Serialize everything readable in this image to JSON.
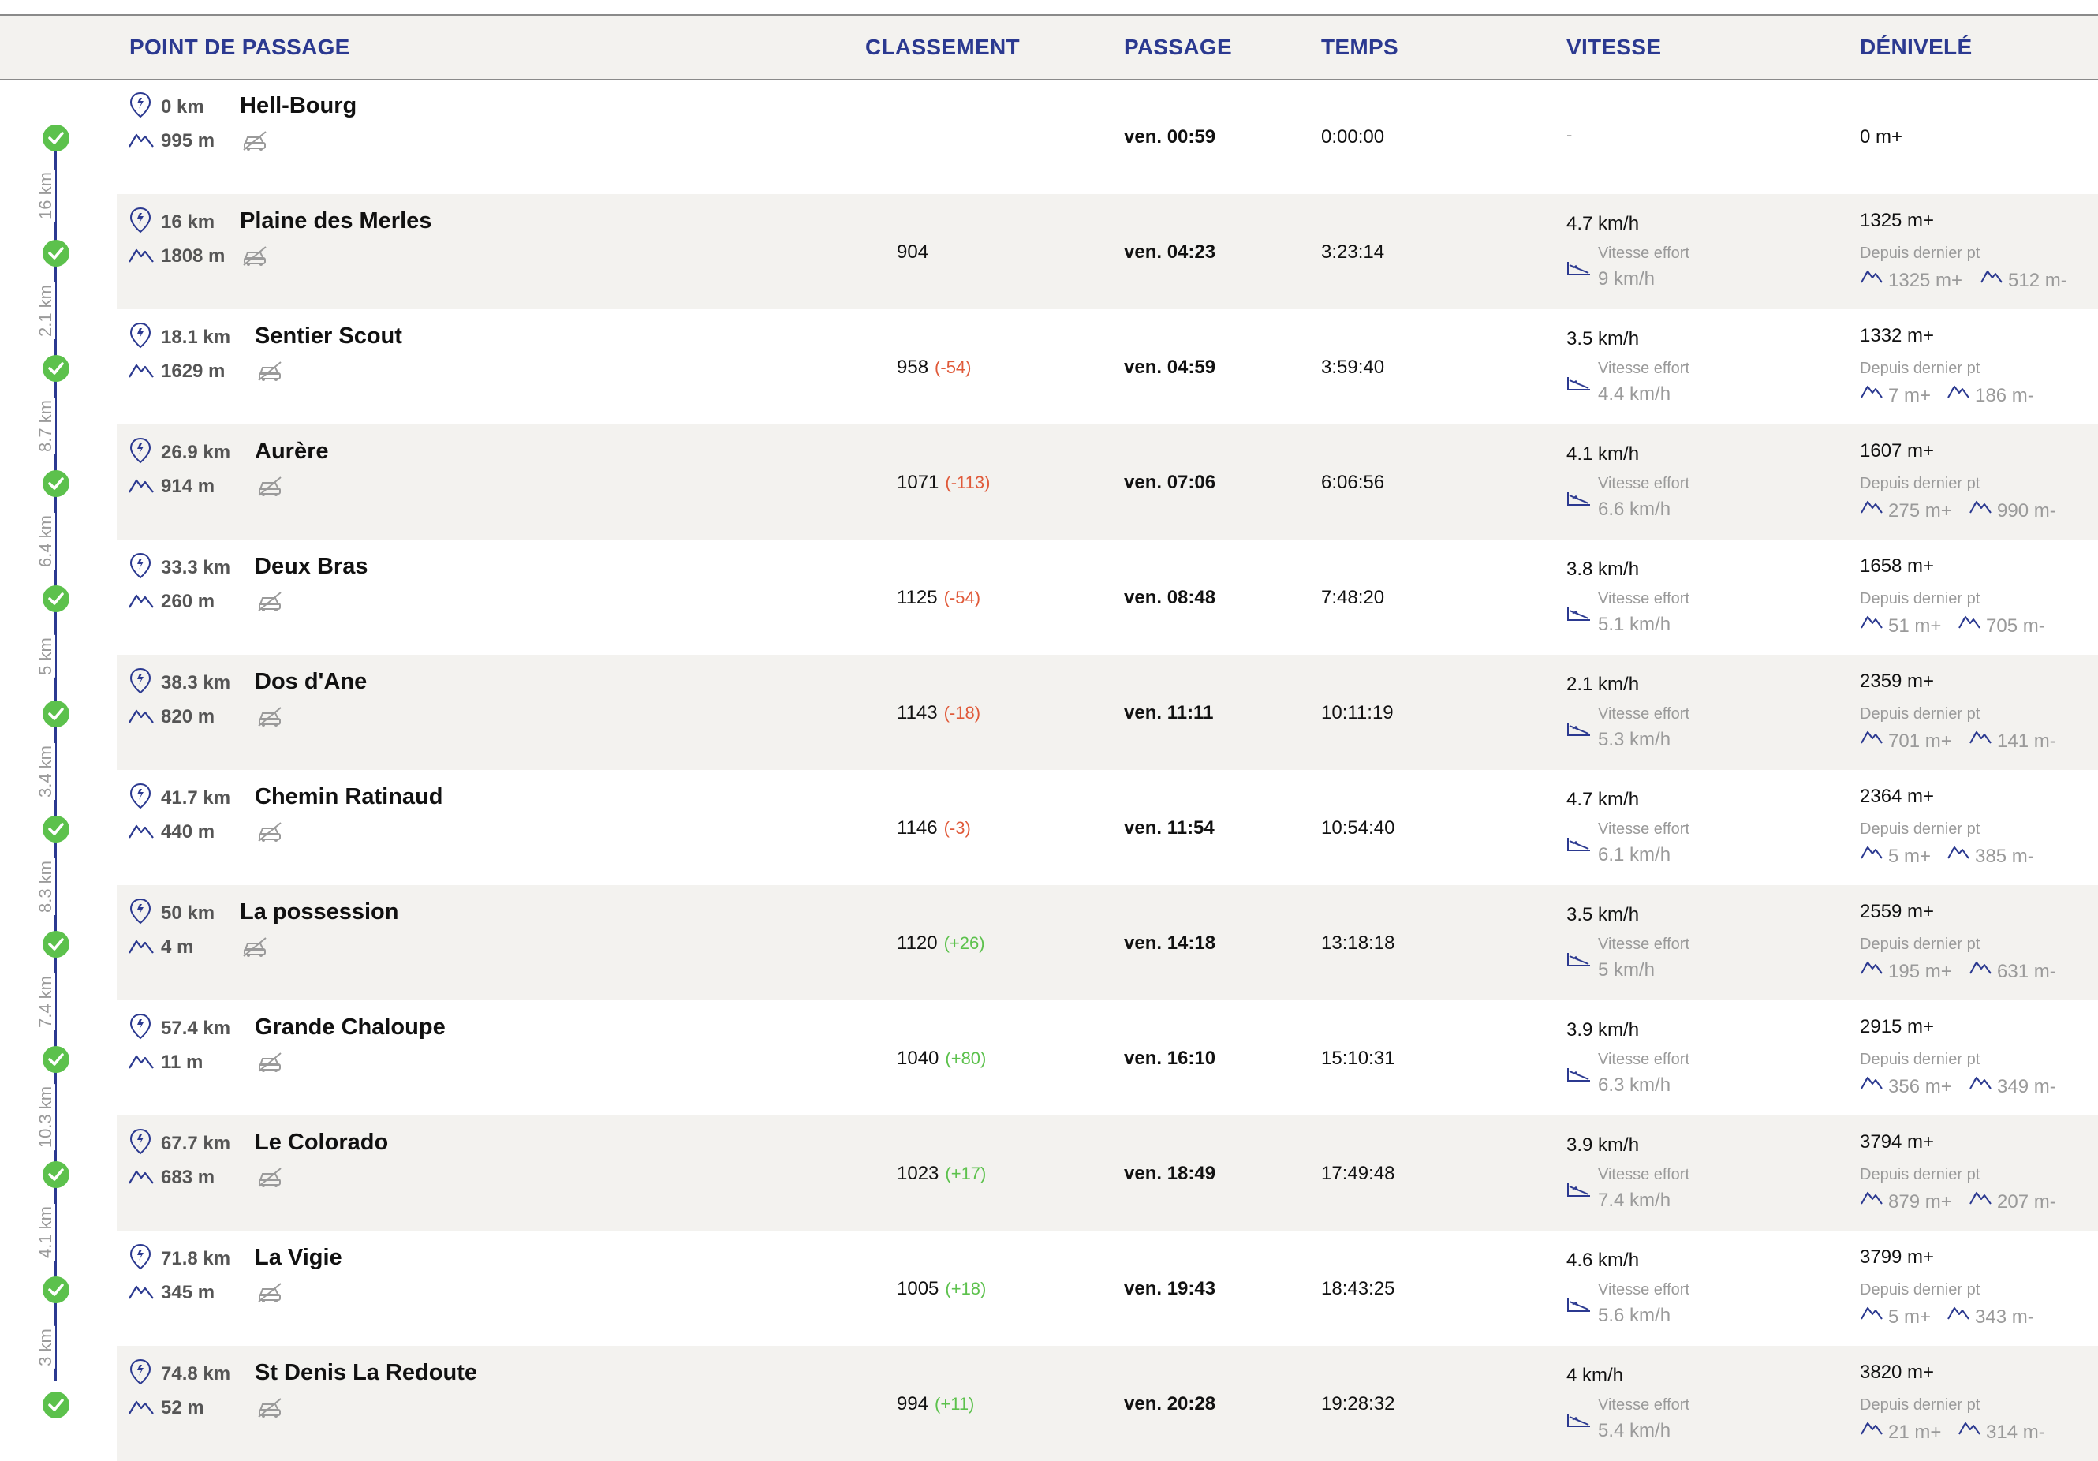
{
  "colors": {
    "accent": "#2b3990",
    "check": "#5cc14c",
    "negative": "#e05a3a",
    "positive": "#5cc14c",
    "muted": "#9a9a9a",
    "shade": "#f3f2ef"
  },
  "icons": {
    "distance": "runner-pin-icon",
    "altitude": "mountain-icon",
    "car": "no-car-icon",
    "effort": "effort-slope-icon",
    "elevation": "elevation-icon"
  },
  "header": {
    "point": "POINT DE PASSAGE",
    "classement": "CLASSEMENT",
    "passage": "PASSAGE",
    "temps": "TEMPS",
    "vitesse": "VITESSE",
    "denivele": "DÉNIVELÉ"
  },
  "effort_label": "Vitesse effort",
  "elev_label": "Depuis dernier pt",
  "first_row_speed": "-",
  "segments": [
    "16 km",
    "2.1 km",
    "8.7 km",
    "6.4 km",
    "5 km",
    "3.4 km",
    "8.3 km",
    "7.4 km",
    "10.3 km",
    "4.1 km",
    "3 km"
  ],
  "rows": [
    {
      "km": "0 km",
      "alt": "995 m",
      "name": "Hell-Bourg",
      "rank": "",
      "delta": "",
      "delta_sign": "",
      "passage": "ven. 00:59",
      "temps": "0:00:00",
      "speed": "",
      "effort": "",
      "elev": "0 m+",
      "up": "",
      "down": ""
    },
    {
      "km": "16 km",
      "alt": "1808 m",
      "name": "Plaine des Merles",
      "rank": "904",
      "delta": "",
      "delta_sign": "",
      "passage": "ven. 04:23",
      "temps": "3:23:14",
      "speed": "4.7 km/h",
      "effort": "9 km/h",
      "elev": "1325 m+",
      "up": "1325 m+",
      "down": "512 m-"
    },
    {
      "km": "18.1 km",
      "alt": "1629 m",
      "name": "Sentier Scout",
      "rank": "958",
      "delta": "(-54)",
      "delta_sign": "neg",
      "passage": "ven. 04:59",
      "temps": "3:59:40",
      "speed": "3.5 km/h",
      "effort": "4.4 km/h",
      "elev": "1332 m+",
      "up": "7 m+",
      "down": "186 m-"
    },
    {
      "km": "26.9 km",
      "alt": "914 m",
      "name": "Aurère",
      "rank": "1071",
      "delta": "(-113)",
      "delta_sign": "neg",
      "passage": "ven. 07:06",
      "temps": "6:06:56",
      "speed": "4.1 km/h",
      "effort": "6.6 km/h",
      "elev": "1607 m+",
      "up": "275 m+",
      "down": "990 m-"
    },
    {
      "km": "33.3 km",
      "alt": "260 m",
      "name": "Deux Bras",
      "rank": "1125",
      "delta": "(-54)",
      "delta_sign": "neg",
      "passage": "ven. 08:48",
      "temps": "7:48:20",
      "speed": "3.8 km/h",
      "effort": "5.1 km/h",
      "elev": "1658 m+",
      "up": "51 m+",
      "down": "705 m-"
    },
    {
      "km": "38.3 km",
      "alt": "820 m",
      "name": "Dos d'Ane",
      "rank": "1143",
      "delta": "(-18)",
      "delta_sign": "neg",
      "passage": "ven. 11:11",
      "temps": "10:11:19",
      "speed": "2.1 km/h",
      "effort": "5.3 km/h",
      "elev": "2359 m+",
      "up": "701 m+",
      "down": "141 m-"
    },
    {
      "km": "41.7 km",
      "alt": "440 m",
      "name": "Chemin Ratinaud",
      "rank": "1146",
      "delta": "(-3)",
      "delta_sign": "neg",
      "passage": "ven. 11:54",
      "temps": "10:54:40",
      "speed": "4.7 km/h",
      "effort": "6.1 km/h",
      "elev": "2364 m+",
      "up": "5 m+",
      "down": "385 m-"
    },
    {
      "km": "50 km",
      "alt": "4 m",
      "name": "La possession",
      "rank": "1120",
      "delta": "(+26)",
      "delta_sign": "pos",
      "passage": "ven. 14:18",
      "temps": "13:18:18",
      "speed": "3.5 km/h",
      "effort": "5 km/h",
      "elev": "2559 m+",
      "up": "195 m+",
      "down": "631 m-"
    },
    {
      "km": "57.4 km",
      "alt": "11 m",
      "name": "Grande Chaloupe",
      "rank": "1040",
      "delta": "(+80)",
      "delta_sign": "pos",
      "passage": "ven. 16:10",
      "temps": "15:10:31",
      "speed": "3.9 km/h",
      "effort": "6.3 km/h",
      "elev": "2915 m+",
      "up": "356 m+",
      "down": "349 m-"
    },
    {
      "km": "67.7 km",
      "alt": "683 m",
      "name": "Le Colorado",
      "rank": "1023",
      "delta": "(+17)",
      "delta_sign": "pos",
      "passage": "ven. 18:49",
      "temps": "17:49:48",
      "speed": "3.9 km/h",
      "effort": "7.4 km/h",
      "elev": "3794 m+",
      "up": "879 m+",
      "down": "207 m-"
    },
    {
      "km": "71.8 km",
      "alt": "345 m",
      "name": "La Vigie",
      "rank": "1005",
      "delta": "(+18)",
      "delta_sign": "pos",
      "passage": "ven. 19:43",
      "temps": "18:43:25",
      "speed": "4.6 km/h",
      "effort": "5.6 km/h",
      "elev": "3799 m+",
      "up": "5 m+",
      "down": "343 m-"
    },
    {
      "km": "74.8 km",
      "alt": "52 m",
      "name": "St Denis La Redoute",
      "rank": "994",
      "delta": "(+11)",
      "delta_sign": "pos",
      "passage": "ven. 20:28",
      "temps": "19:28:32",
      "speed": "4 km/h",
      "effort": "5.4 km/h",
      "elev": "3820 m+",
      "up": "21 m+",
      "down": "314 m-"
    }
  ]
}
